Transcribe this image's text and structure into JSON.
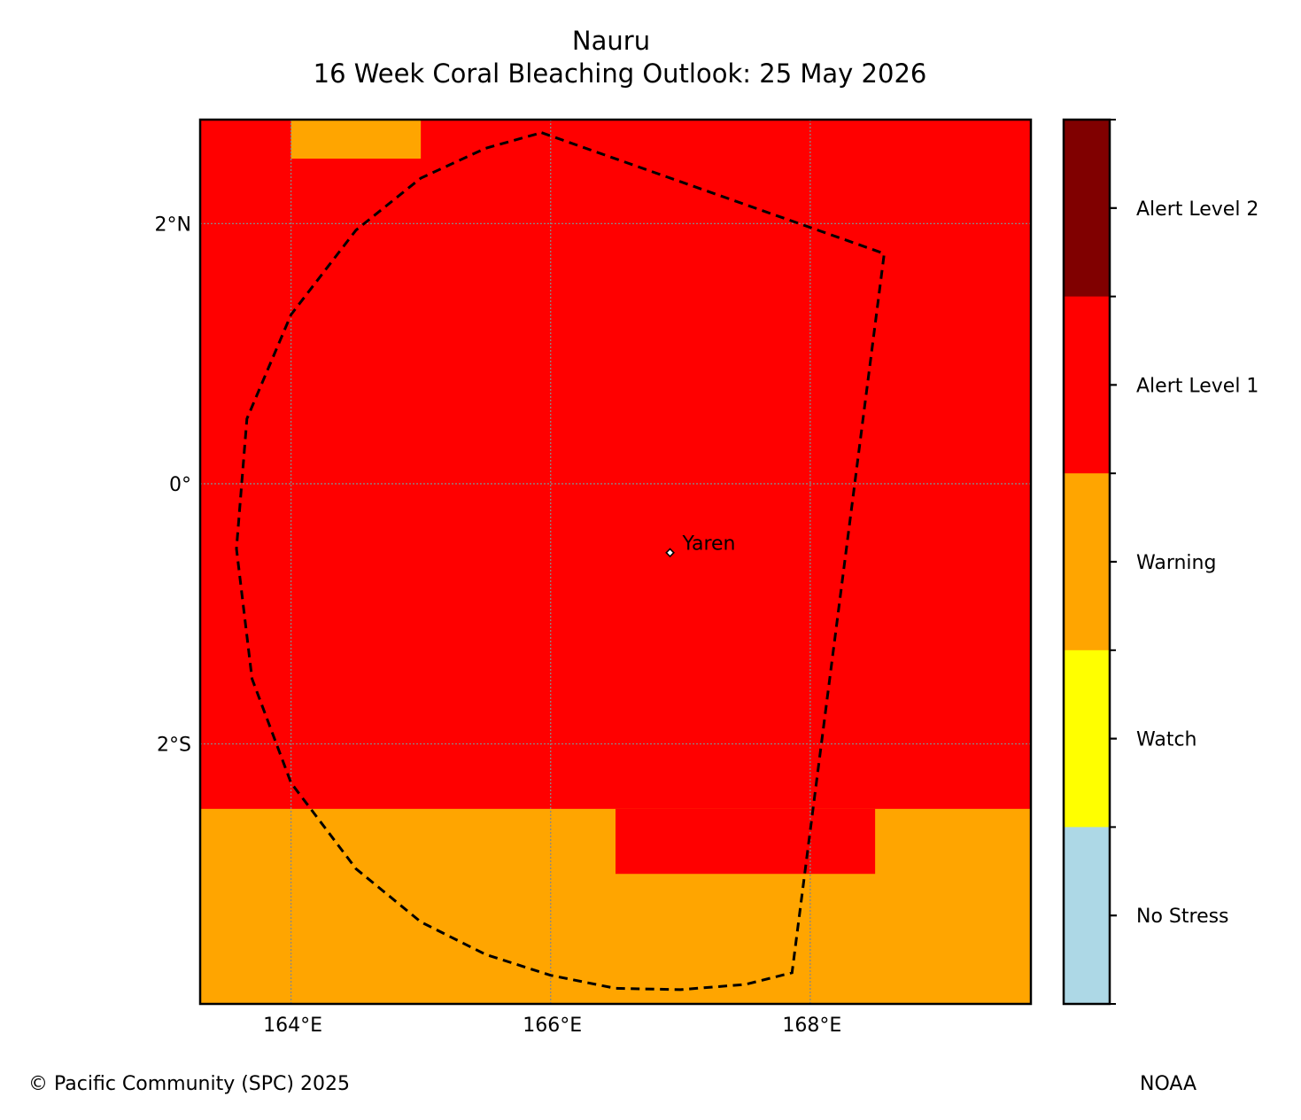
{
  "title": {
    "line1": "Nauru",
    "line2": "16 Week Coral Bleaching Outlook: 25 May 2026"
  },
  "map": {
    "lon_range": [
      163.3,
      169.7
    ],
    "lat_range": [
      -4.0,
      2.8
    ],
    "lon_ticks": [
      {
        "value": 164,
        "label": "164°E"
      },
      {
        "value": 166,
        "label": "166°E"
      },
      {
        "value": 168,
        "label": "168°E"
      }
    ],
    "lat_ticks": [
      {
        "value": 2,
        "label": "2°N"
      },
      {
        "value": 0,
        "label": "0°"
      },
      {
        "value": -2,
        "label": "2°S"
      }
    ],
    "gridlines": true,
    "background_level": "Alert Level 1",
    "regions": [
      {
        "level": "Warning",
        "lon": [
          164.0,
          165.0
        ],
        "lat": [
          2.5,
          2.8
        ]
      },
      {
        "level": "Warning",
        "lon": [
          163.3,
          169.7
        ],
        "lat": [
          -4.0,
          -2.5
        ]
      },
      {
        "level": "Alert Level 1",
        "lon": [
          166.5,
          168.5
        ],
        "lat": [
          -3.0,
          -2.5
        ]
      }
    ],
    "eez_boundary": {
      "style": "dashed",
      "points": [
        [
          165.93,
          2.7
        ],
        [
          168.57,
          1.77
        ],
        [
          167.86,
          -3.76
        ],
        [
          167.5,
          -3.85
        ],
        [
          167.0,
          -3.89
        ],
        [
          166.5,
          -3.88
        ],
        [
          166.0,
          -3.78
        ],
        [
          165.5,
          -3.62
        ],
        [
          165.0,
          -3.37
        ],
        [
          164.5,
          -2.96
        ],
        [
          164.0,
          -2.3
        ],
        [
          163.7,
          -1.5
        ],
        [
          163.58,
          -0.5
        ],
        [
          163.66,
          0.5
        ],
        [
          164.0,
          1.3
        ],
        [
          164.5,
          1.95
        ],
        [
          165.0,
          2.35
        ],
        [
          165.5,
          2.58
        ],
        [
          165.93,
          2.7
        ]
      ]
    },
    "place": {
      "name": "Yaren",
      "lon": 166.92,
      "lat": -0.53
    }
  },
  "legend": {
    "levels": [
      {
        "label": "Alert Level 2",
        "color": "#800000"
      },
      {
        "label": "Alert Level 1",
        "color": "#ff0000"
      },
      {
        "label": "Warning",
        "color": "#ffa500"
      },
      {
        "label": "Watch",
        "color": "#ffff00"
      },
      {
        "label": "No Stress",
        "color": "#add8e6"
      }
    ]
  },
  "footer": {
    "left": "© Pacific Community (SPC) 2025",
    "right": "NOAA"
  }
}
